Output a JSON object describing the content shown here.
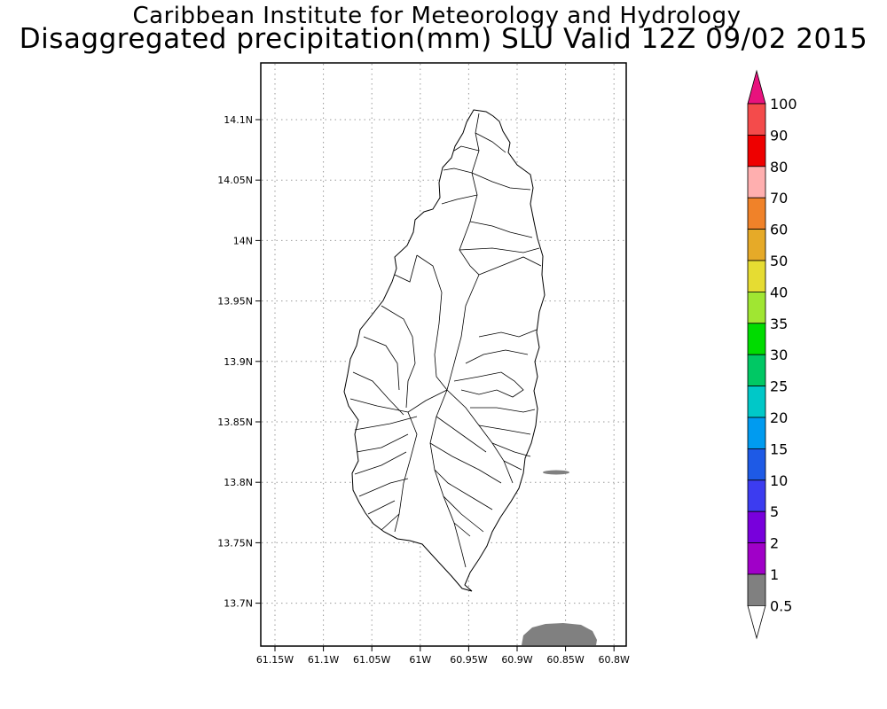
{
  "header": {
    "institute": "Caribbean Institute for Meteorology and Hydrology",
    "product": "Disaggregated precipitation(mm) SLU Valid 12Z 09/02 2015"
  },
  "map": {
    "lon_ticks": [
      "61.15W",
      "61.1W",
      "61.05W",
      "61W",
      "60.95W",
      "60.9W",
      "60.85W",
      "60.8W"
    ],
    "lat_ticks": [
      "14.1N",
      "14.05N",
      "14N",
      "13.95N",
      "13.9N",
      "13.85N",
      "13.8N",
      "13.75N",
      "13.7N"
    ],
    "gridlines": true
  },
  "colorbar": {
    "levels": [
      "100",
      "90",
      "80",
      "70",
      "60",
      "50",
      "40",
      "35",
      "30",
      "25",
      "20",
      "15",
      "10",
      "5",
      "2",
      "1",
      "0.5"
    ],
    "colors": [
      "#e8127d",
      "#f44b4b",
      "#ee0000",
      "#ffafaf",
      "#f08229",
      "#e6aa28",
      "#e6dc32",
      "#a0e632",
      "#00dc00",
      "#00c864",
      "#00c8c8",
      "#009bf0",
      "#1e5ae6",
      "#3c3cf0",
      "#7800dc",
      "#a000c8",
      "#808080",
      "#ffffff"
    ]
  },
  "precip_areas": [
    {
      "label": "0.5-1",
      "color": "#808080"
    }
  ]
}
